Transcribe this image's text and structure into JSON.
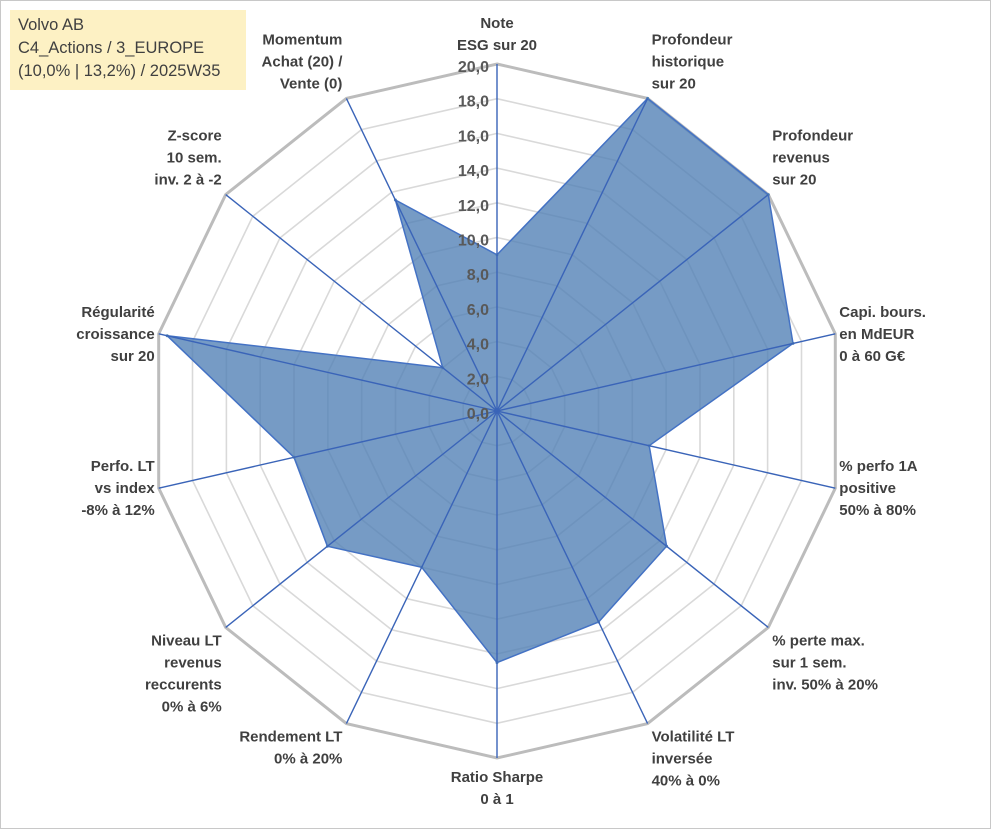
{
  "info_box": {
    "line1": "Volvo AB",
    "line2": "C4_Actions / 3_EUROPE",
    "line3": "(10,0% | 13,2%) / 2025W35"
  },
  "chart_data": {
    "type": "radar",
    "title": "",
    "rmin": 0,
    "rmax": 20,
    "tick_step": 2,
    "ticks": [
      "0,0",
      "2,0",
      "4,0",
      "6,0",
      "8,0",
      "10,0",
      "12,0",
      "14,0",
      "16,0",
      "18,0",
      "20,0"
    ],
    "grid": true,
    "axes": [
      {
        "lines": [
          "Note",
          "ESG sur 20"
        ]
      },
      {
        "lines": [
          "Profondeur",
          "historique",
          "sur 20"
        ]
      },
      {
        "lines": [
          "Profondeur",
          "revenus",
          "sur 20"
        ]
      },
      {
        "lines": [
          "Capi. bours.",
          "en MdEUR",
          "0 à 60 G€"
        ]
      },
      {
        "lines": [
          "% perfo 1A",
          "positive",
          "50% à 80%"
        ]
      },
      {
        "lines": [
          "% perte max.",
          "sur 1 sem.",
          "inv. 50% à 20%"
        ]
      },
      {
        "lines": [
          "Volatilité LT",
          "inversée",
          "40% à 0%"
        ]
      },
      {
        "lines": [
          "Ratio Sharpe",
          "0 à 1"
        ]
      },
      {
        "lines": [
          "Rendement LT",
          "0% à 20%"
        ]
      },
      {
        "lines": [
          "Niveau LT",
          "revenus",
          "reccurents",
          "0% à 6%"
        ]
      },
      {
        "lines": [
          "Perfo. LT",
          "vs index",
          "-8% à 12%"
        ]
      },
      {
        "lines": [
          "Régularité",
          "croissance",
          "sur 20"
        ]
      },
      {
        "lines": [
          "Z-score",
          "10 sem.",
          "inv. 2 à -2"
        ]
      },
      {
        "lines": [
          "Momentum",
          "Achat (20) /",
          "Vente (0)"
        ]
      }
    ],
    "series": [
      {
        "values": [
          9.0,
          20.0,
          20.0,
          17.5,
          9.0,
          12.5,
          13.5,
          14.5,
          10.0,
          12.5,
          12.0,
          19.5,
          4.0,
          13.5
        ],
        "color": "#4f7fb5"
      }
    ]
  }
}
